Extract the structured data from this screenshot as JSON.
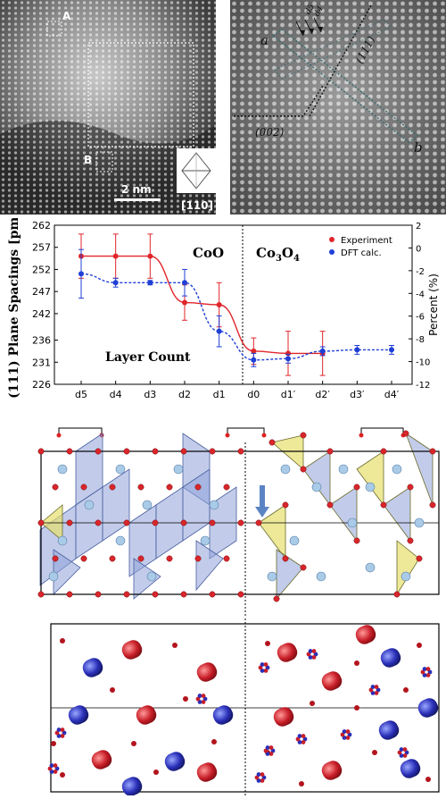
{
  "stem_left": {
    "box_a": "A",
    "box_b": "B",
    "scale_bar": "2 nm",
    "zone_axis": "[110]"
  },
  "stem_right": {
    "label_a": "a",
    "label_b": "b",
    "label_111": "(111)",
    "label_002": "(002)",
    "label_d5": "d5",
    "label_d4": "d4"
  },
  "chart_data": {
    "type": "line",
    "ylabel": "(111) Plane Spacings [pm]",
    "y2label": "Percent (%)",
    "xlabel": "Layer Count",
    "categories": [
      "d5",
      "d4",
      "d3",
      "d2",
      "d1",
      "d0",
      "d1′",
      "d2′",
      "d3′",
      "d4′"
    ],
    "ylim": [
      226,
      262
    ],
    "y_ticks": [
      "226",
      "231",
      "236",
      "242",
      "247",
      "252",
      "257",
      "262"
    ],
    "y2lim": [
      -12,
      2
    ],
    "y2_ticks": [
      "-12",
      "-10",
      "-8",
      "-6",
      "-4",
      "-2",
      "0",
      "2"
    ],
    "region_left": "CoO",
    "region_right": "Co3O4",
    "legend_position": "top-right",
    "series": [
      {
        "name": "Experiment",
        "color": "#e0262b",
        "values": [
          255,
          255,
          255,
          244.5,
          244,
          233.5,
          233,
          233,
          null,
          null
        ],
        "errors": [
          5,
          5,
          5,
          4,
          5,
          3,
          5,
          5,
          null,
          null
        ]
      },
      {
        "name": "DFT calc.",
        "color": "#1f3fd6",
        "values": [
          251,
          249,
          249,
          249,
          238,
          231.5,
          231.8,
          233.5,
          233.8,
          233.8
        ],
        "errors": [
          5.5,
          1,
          0.5,
          3,
          3.5,
          1.5,
          1,
          1,
          1,
          1
        ]
      }
    ]
  }
}
